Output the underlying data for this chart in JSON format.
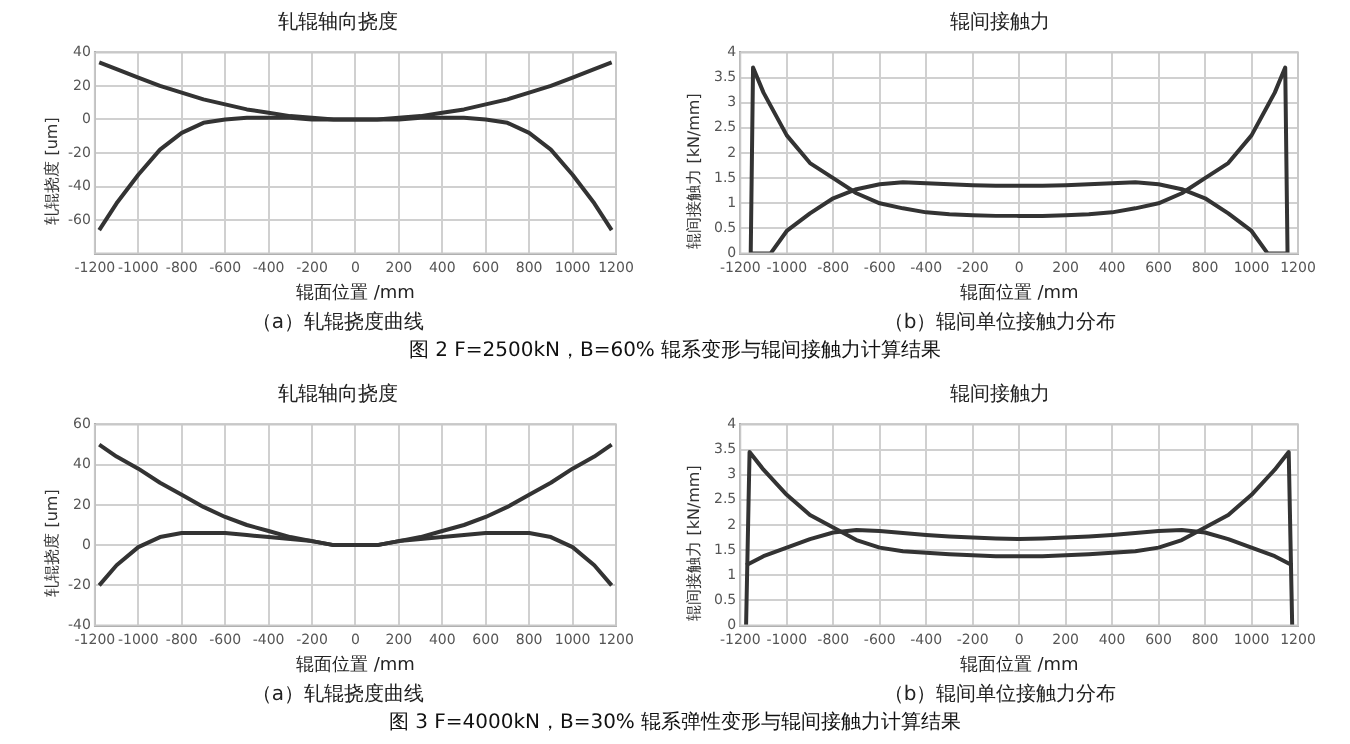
{
  "chart_data": [
    {
      "type": "line",
      "title": "轧辊轴向挠度",
      "xlabel": "辊面位置 /mm",
      "ylabel": "轧辊挠度 [um]",
      "xlim": [
        -1200,
        1200
      ],
      "xticks": [
        -1200,
        -1000,
        -800,
        -600,
        -400,
        -200,
        0,
        200,
        400,
        600,
        800,
        1000,
        1200
      ],
      "ylim": [
        -80,
        40
      ],
      "yticks": [
        -60,
        -40,
        -20,
        0,
        20,
        40
      ],
      "grid": true,
      "marker": "none",
      "legend": false,
      "annotations": [
        "（a）轧辊挠度曲线",
        "图 2  F=2500kN，B=60% 辊系变形与辊间接触力计算结果"
      ],
      "series": [
        {
          "color": "#333333",
          "x": [
            -1180,
            -1100,
            -1000,
            -900,
            -800,
            -700,
            -600,
            -500,
            -400,
            -300,
            -200,
            -100,
            0,
            100,
            200,
            300,
            400,
            500,
            600,
            700,
            800,
            900,
            1000,
            1100,
            1180
          ],
          "values": [
            34,
            30,
            25,
            20,
            16,
            12,
            9,
            6,
            4,
            2,
            1,
            0,
            0,
            0,
            1,
            2,
            4,
            6,
            9,
            12,
            16,
            20,
            25,
            30,
            34
          ]
        },
        {
          "color": "#333333",
          "x": [
            -1180,
            -1100,
            -1000,
            -900,
            -800,
            -700,
            -600,
            -500,
            -400,
            -300,
            -200,
            -100,
            0,
            100,
            200,
            300,
            400,
            500,
            600,
            700,
            800,
            900,
            1000,
            1100,
            1180
          ],
          "values": [
            -66,
            -50,
            -33,
            -18,
            -8,
            -2,
            0,
            1,
            1,
            1,
            0,
            0,
            0,
            0,
            0,
            1,
            1,
            1,
            0,
            -2,
            -8,
            -18,
            -33,
            -50,
            -66
          ]
        }
      ]
    },
    {
      "type": "line",
      "title": "辊间接触力",
      "xlabel": "辊面位置 /mm",
      "ylabel": "辊间接触力 [kN/mm]",
      "xlim": [
        -1200,
        1200
      ],
      "xticks": [
        -1200,
        -1000,
        -800,
        -600,
        -400,
        -200,
        0,
        200,
        400,
        600,
        800,
        1000,
        1200
      ],
      "ylim": [
        0,
        4
      ],
      "yticks": [
        0,
        0.5,
        1,
        1.5,
        2,
        2.5,
        3,
        3.5,
        4
      ],
      "grid": true,
      "marker": "none",
      "legend": false,
      "annotations": [
        "（b）辊间单位接触力分布"
      ],
      "series": [
        {
          "color": "#333333",
          "x": [
            -1155,
            -1145,
            -1100,
            -1000,
            -900,
            -800,
            -700,
            -600,
            -500,
            -400,
            -300,
            -200,
            -100,
            0,
            100,
            200,
            300,
            400,
            500,
            600,
            700,
            800,
            900,
            1000,
            1100,
            1145,
            1155
          ],
          "values": [
            0,
            3.7,
            3.2,
            2.35,
            1.8,
            1.5,
            1.2,
            1.0,
            0.9,
            0.82,
            0.78,
            0.76,
            0.75,
            0.75,
            0.75,
            0.76,
            0.78,
            0.82,
            0.9,
            1.0,
            1.2,
            1.5,
            1.8,
            2.35,
            3.2,
            3.7,
            0
          ]
        },
        {
          "color": "#333333",
          "x": [
            -1155,
            -1070,
            -1000,
            -900,
            -800,
            -700,
            -600,
            -500,
            -400,
            -300,
            -200,
            -100,
            0,
            100,
            200,
            300,
            400,
            500,
            600,
            700,
            800,
            900,
            1000,
            1070,
            1155
          ],
          "values": [
            0,
            0,
            0.45,
            0.8,
            1.1,
            1.28,
            1.38,
            1.42,
            1.4,
            1.38,
            1.36,
            1.35,
            1.35,
            1.35,
            1.36,
            1.38,
            1.4,
            1.42,
            1.38,
            1.28,
            1.1,
            0.8,
            0.45,
            0,
            0
          ]
        }
      ]
    },
    {
      "type": "line",
      "title": "轧辊轴向挠度",
      "xlabel": "辊面位置 /mm",
      "ylabel": "轧辊挠度 [um]",
      "xlim": [
        -1200,
        1200
      ],
      "xticks": [
        -1200,
        -1000,
        -800,
        -600,
        -400,
        -200,
        0,
        200,
        400,
        600,
        800,
        1000,
        1200
      ],
      "ylim": [
        -40,
        60
      ],
      "yticks": [
        -40,
        -20,
        0,
        20,
        40,
        60
      ],
      "grid": true,
      "marker": "none",
      "legend": false,
      "annotations": [
        "（a）轧辊挠度曲线",
        "图 3  F=4000kN，B=30% 辊系弹性变形与辊间接触力计算结果"
      ],
      "series": [
        {
          "color": "#333333",
          "x": [
            -1180,
            -1100,
            -1000,
            -900,
            -800,
            -700,
            -600,
            -500,
            -400,
            -300,
            -200,
            -100,
            0,
            100,
            200,
            300,
            400,
            500,
            600,
            700,
            800,
            900,
            1000,
            1100,
            1180
          ],
          "values": [
            50,
            44,
            38,
            31,
            25,
            19,
            14,
            10,
            7,
            4,
            2,
            0,
            0,
            0,
            2,
            4,
            7,
            10,
            14,
            19,
            25,
            31,
            38,
            44,
            50
          ]
        },
        {
          "color": "#333333",
          "x": [
            -1180,
            -1100,
            -1000,
            -900,
            -800,
            -700,
            -600,
            -500,
            -400,
            -300,
            -200,
            -100,
            0,
            100,
            200,
            300,
            400,
            500,
            600,
            700,
            800,
            900,
            1000,
            1100,
            1180
          ],
          "values": [
            -20,
            -10,
            -1,
            4,
            6,
            6,
            6,
            5,
            4,
            3,
            2,
            0,
            0,
            0,
            2,
            3,
            4,
            5,
            6,
            6,
            6,
            4,
            -1,
            -10,
            -20
          ]
        }
      ]
    },
    {
      "type": "line",
      "title": "辊间接触力",
      "xlabel": "辊面位置 /mm",
      "ylabel": "辊间接触力 [kN/mm]",
      "xlim": [
        -1200,
        1200
      ],
      "xticks": [
        -1200,
        -1000,
        -800,
        -600,
        -400,
        -200,
        0,
        200,
        400,
        600,
        800,
        1000,
        1200
      ],
      "ylim": [
        0,
        4
      ],
      "yticks": [
        0,
        0.5,
        1,
        1.5,
        2,
        2.5,
        3,
        3.5,
        4
      ],
      "grid": true,
      "marker": "none",
      "legend": false,
      "annotations": [
        "（b）辊间单位接触力分布"
      ],
      "series": [
        {
          "color": "#333333",
          "x": [
            -1175,
            -1160,
            -1100,
            -1000,
            -900,
            -800,
            -700,
            -600,
            -500,
            -400,
            -300,
            -200,
            -100,
            0,
            100,
            200,
            300,
            400,
            500,
            600,
            700,
            800,
            900,
            1000,
            1100,
            1160,
            1175
          ],
          "values": [
            0,
            3.45,
            3.1,
            2.6,
            2.2,
            1.95,
            1.7,
            1.55,
            1.48,
            1.45,
            1.42,
            1.4,
            1.38,
            1.38,
            1.38,
            1.4,
            1.42,
            1.45,
            1.48,
            1.55,
            1.7,
            1.95,
            2.2,
            2.6,
            3.1,
            3.45,
            0
          ]
        },
        {
          "color": "#333333",
          "x": [
            -1175,
            -1100,
            -1000,
            -900,
            -800,
            -700,
            -600,
            -500,
            -400,
            -300,
            -200,
            -100,
            0,
            100,
            200,
            300,
            400,
            500,
            600,
            700,
            800,
            900,
            1000,
            1100,
            1175
          ],
          "values": [
            1.2,
            1.38,
            1.55,
            1.72,
            1.85,
            1.9,
            1.88,
            1.84,
            1.8,
            1.77,
            1.75,
            1.73,
            1.72,
            1.73,
            1.75,
            1.77,
            1.8,
            1.84,
            1.88,
            1.9,
            1.85,
            1.72,
            1.55,
            1.38,
            1.2
          ]
        }
      ]
    }
  ]
}
